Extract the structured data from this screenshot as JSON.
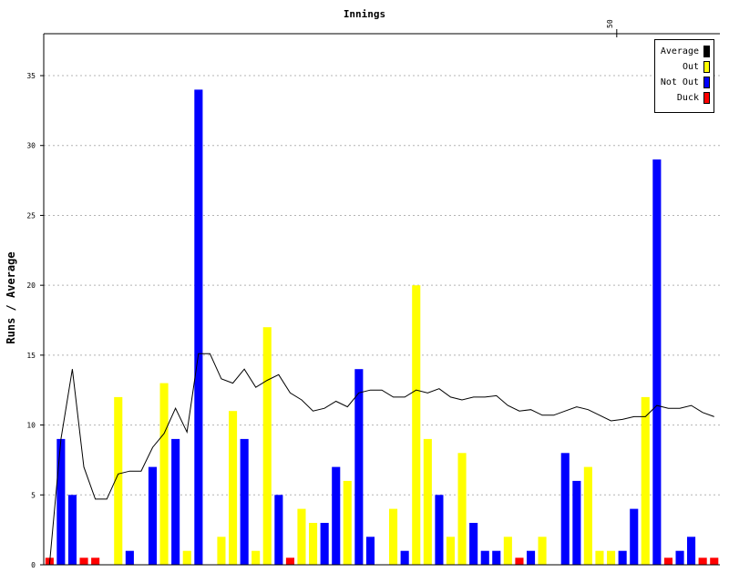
{
  "chart_data": {
    "type": "bar",
    "title": "Innings",
    "ylabel": "Runs / Average",
    "xlabel": "",
    "ylim": [
      0,
      38
    ],
    "yticks": [
      0,
      5,
      10,
      15,
      20,
      25,
      30,
      35
    ],
    "top_axis_ticks": [
      50
    ],
    "grid": "horizontal dashed",
    "legend_position": "top-right",
    "legend": [
      {
        "label": "Average",
        "color": "#000000"
      },
      {
        "label": "Out",
        "color": "#ffff00"
      },
      {
        "label": "Not Out",
        "color": "#0000ff"
      },
      {
        "label": "Duck",
        "color": "#ff0000"
      }
    ],
    "innings": [
      {
        "runs": 0.5,
        "status": "duck"
      },
      {
        "runs": 9,
        "status": "notout"
      },
      {
        "runs": 5,
        "status": "notout"
      },
      {
        "runs": 0.5,
        "status": "duck"
      },
      {
        "runs": 0.5,
        "status": "duck"
      },
      {
        "runs": 0,
        "status": "none"
      },
      {
        "runs": 12,
        "status": "out"
      },
      {
        "runs": 1,
        "status": "notout"
      },
      {
        "runs": 0,
        "status": "none"
      },
      {
        "runs": 7,
        "status": "notout"
      },
      {
        "runs": 13,
        "status": "out"
      },
      {
        "runs": 9,
        "status": "notout"
      },
      {
        "runs": 1,
        "status": "out"
      },
      {
        "runs": 34,
        "status": "notout"
      },
      {
        "runs": 0,
        "status": "none"
      },
      {
        "runs": 2,
        "status": "out"
      },
      {
        "runs": 11,
        "status": "out"
      },
      {
        "runs": 9,
        "status": "notout"
      },
      {
        "runs": 1,
        "status": "out"
      },
      {
        "runs": 17,
        "status": "out"
      },
      {
        "runs": 5,
        "status": "notout"
      },
      {
        "runs": 0.5,
        "status": "duck"
      },
      {
        "runs": 4,
        "status": "out"
      },
      {
        "runs": 3,
        "status": "out"
      },
      {
        "runs": 3,
        "status": "notout"
      },
      {
        "runs": 7,
        "status": "notout"
      },
      {
        "runs": 6,
        "status": "out"
      },
      {
        "runs": 14,
        "status": "notout"
      },
      {
        "runs": 2,
        "status": "notout"
      },
      {
        "runs": 0,
        "status": "none"
      },
      {
        "runs": 4,
        "status": "out"
      },
      {
        "runs": 1,
        "status": "notout"
      },
      {
        "runs": 20,
        "status": "out"
      },
      {
        "runs": 9,
        "status": "out"
      },
      {
        "runs": 5,
        "status": "notout"
      },
      {
        "runs": 2,
        "status": "out"
      },
      {
        "runs": 8,
        "status": "out"
      },
      {
        "runs": 3,
        "status": "notout"
      },
      {
        "runs": 1,
        "status": "notout"
      },
      {
        "runs": 1,
        "status": "notout"
      },
      {
        "runs": 2,
        "status": "out"
      },
      {
        "runs": 0.5,
        "status": "duck"
      },
      {
        "runs": 1,
        "status": "notout"
      },
      {
        "runs": 2,
        "status": "out"
      },
      {
        "runs": 0,
        "status": "none"
      },
      {
        "runs": 8,
        "status": "notout"
      },
      {
        "runs": 6,
        "status": "notout"
      },
      {
        "runs": 7,
        "status": "out"
      },
      {
        "runs": 1,
        "status": "out"
      },
      {
        "runs": 1,
        "status": "out"
      },
      {
        "runs": 1,
        "status": "notout"
      },
      {
        "runs": 4,
        "status": "notout"
      },
      {
        "runs": 12,
        "status": "out"
      },
      {
        "runs": 29,
        "status": "notout"
      },
      {
        "runs": 0.5,
        "status": "duck"
      },
      {
        "runs": 1,
        "status": "notout"
      },
      {
        "runs": 2,
        "status": "notout"
      },
      {
        "runs": 0.5,
        "status": "duck"
      },
      {
        "runs": 0.5,
        "status": "duck"
      }
    ],
    "average": [
      0,
      9,
      14,
      7,
      4.7,
      4.7,
      6.5,
      6.7,
      6.7,
      8.4,
      9.4,
      11.2,
      9.5,
      15.1,
      15.1,
      13.3,
      13,
      14,
      12.7,
      13.2,
      13.6,
      12.3,
      11.8,
      11,
      11.2,
      11.7,
      11.3,
      12.3,
      12.5,
      12.5,
      12,
      12,
      12.5,
      12.3,
      12.6,
      12,
      11.8,
      12,
      12,
      12.1,
      11.4,
      11,
      11.1,
      10.7,
      10.7,
      11,
      11.3,
      11.1,
      10.7,
      10.3,
      10.4,
      10.6,
      10.6,
      11.4,
      11.2,
      11.2,
      11.4,
      10.9,
      10.6
    ]
  }
}
